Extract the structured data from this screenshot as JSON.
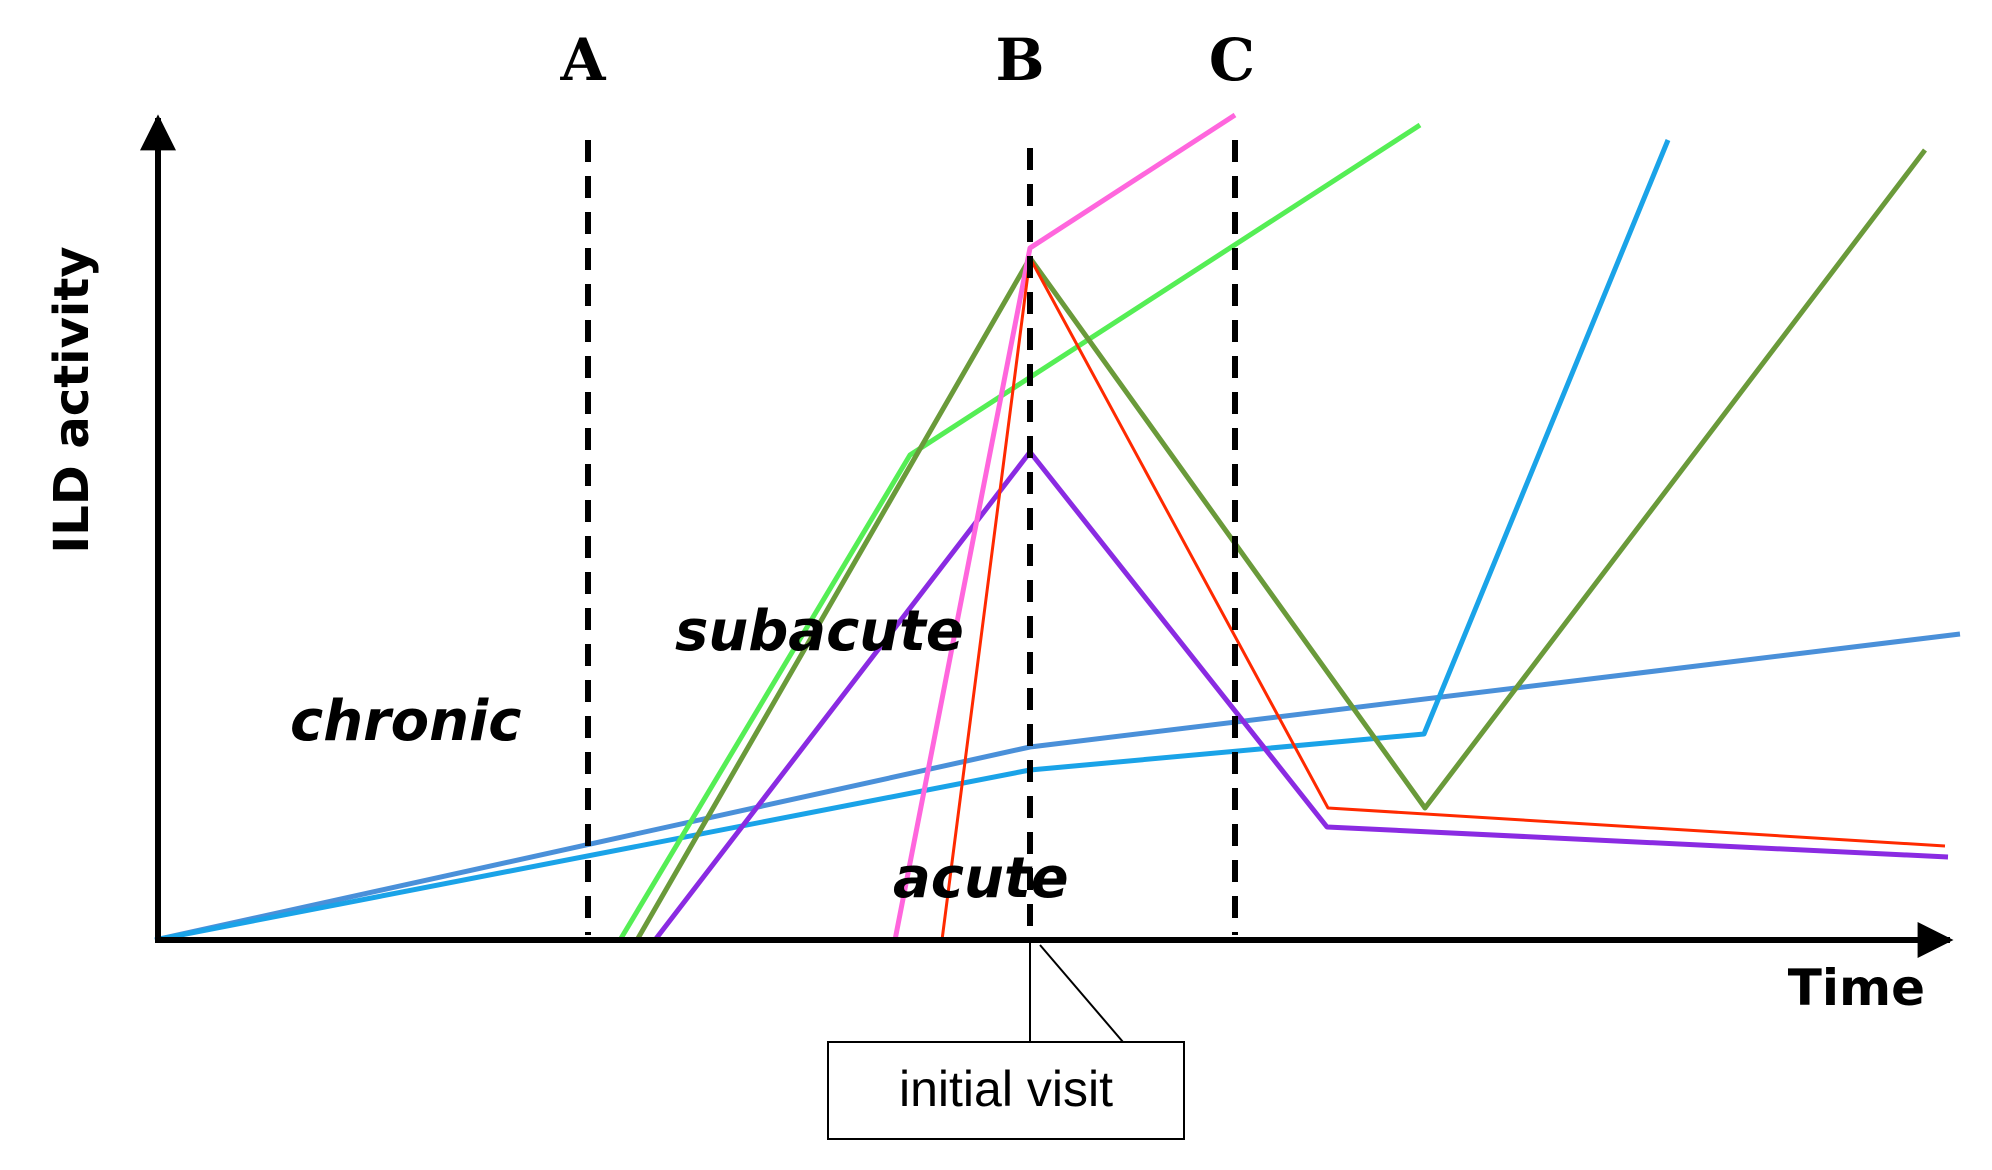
{
  "axes": {
    "y_label": "ILD activity",
    "x_label": "Time"
  },
  "markers": [
    {
      "key": "A",
      "label": "A"
    },
    {
      "key": "B",
      "label": "B"
    },
    {
      "key": "C",
      "label": "C"
    }
  ],
  "phases": {
    "chronic": "chronic",
    "subacute": "subacute",
    "acute": "acute"
  },
  "callout": {
    "text": "initial visit"
  },
  "colors": {
    "axis": "#000000",
    "marker_line": "#000000",
    "chronic_steady": "#4a90d9",
    "chronic_then_rise": "#1aa3e8",
    "subacute_progressive": "#55ee55",
    "subacute_relapse": "#6a9a3a",
    "subacute_improving": "#8a2be2",
    "acute_progressive": "#ff66dd",
    "acute_improving": "#ff2a00"
  },
  "curves": [
    {
      "id": "chronic-steady",
      "color_key": "chronic_steady"
    },
    {
      "id": "chronic-then-rise",
      "color_key": "chronic_then_rise"
    },
    {
      "id": "subacute-progressive",
      "color_key": "subacute_progressive"
    },
    {
      "id": "subacute-relapse",
      "color_key": "subacute_relapse"
    },
    {
      "id": "subacute-improving",
      "color_key": "subacute_improving"
    },
    {
      "id": "acute-progressive",
      "color_key": "acute_progressive"
    },
    {
      "id": "acute-improving",
      "color_key": "acute_improving"
    }
  ]
}
